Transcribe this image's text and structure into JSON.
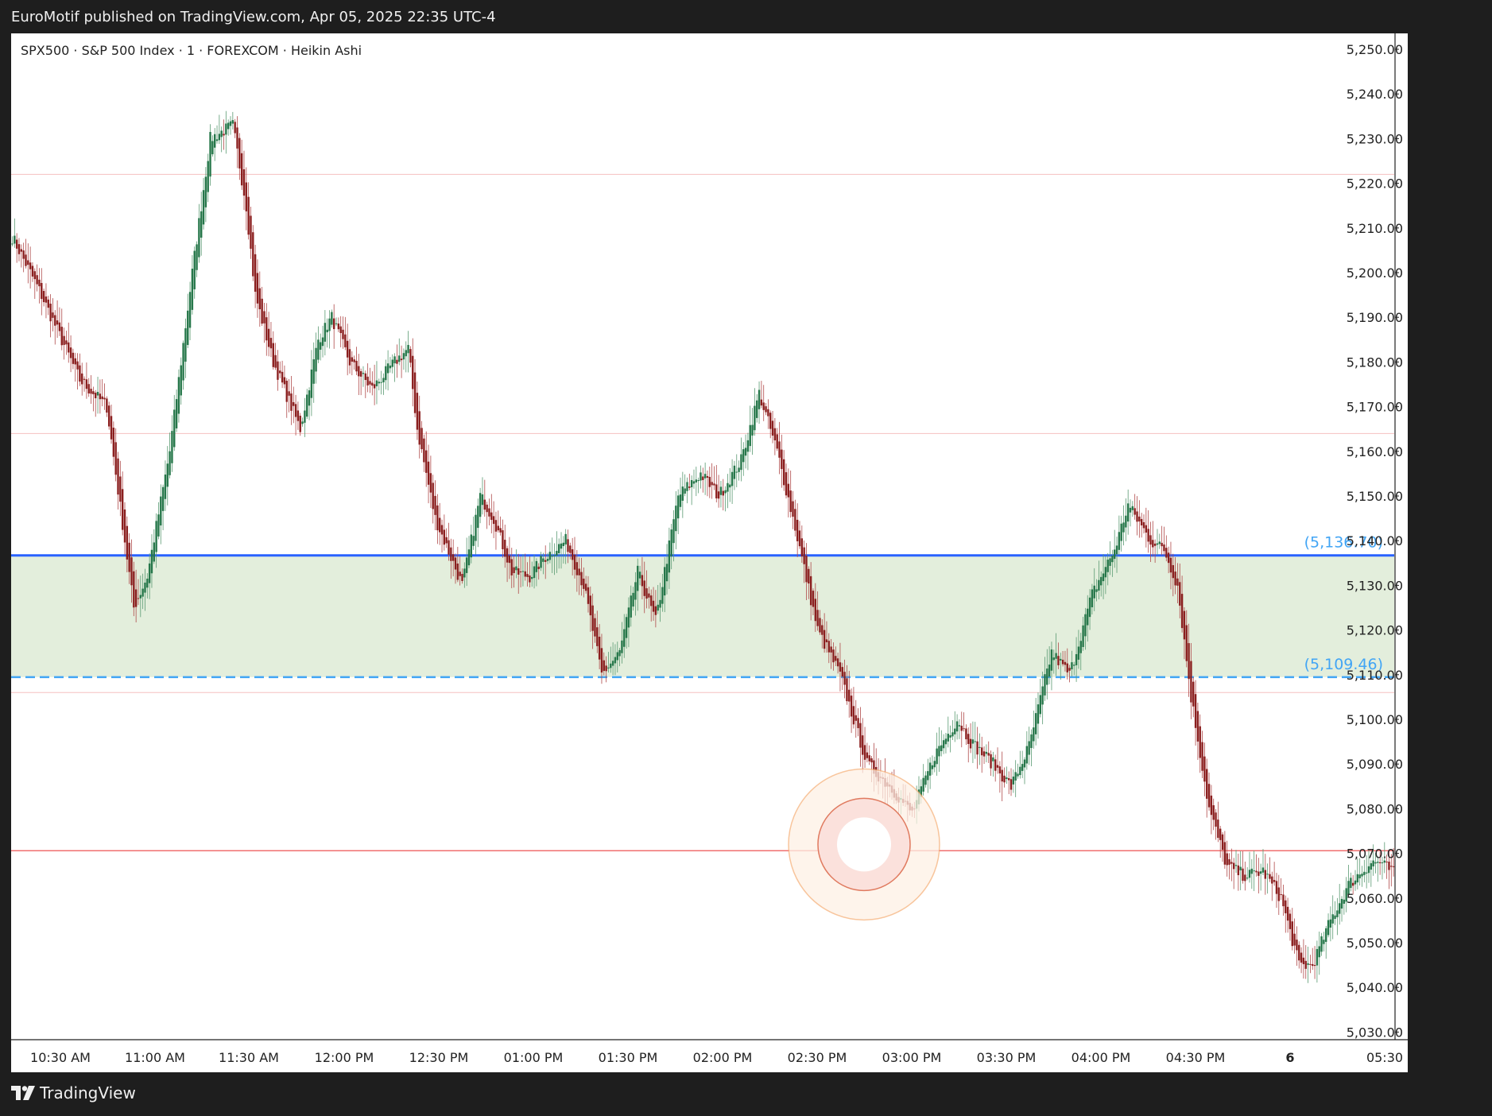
{
  "header": {
    "published": "EuroMotif published on TradingView.com, Apr 05, 2025 22:35 UTC-4"
  },
  "footer": {
    "brand": "TradingView"
  },
  "colors": {
    "up": "#26774a",
    "down": "#8b1f1f",
    "wick_up": "#5a9a72",
    "wick_down": "#b04a4a",
    "zone_fill": "#e3eedc",
    "level_blue": "#2962ff",
    "level_label": "#42a5f5",
    "red_line": "#f06f6f",
    "faint_red_line": "#f5c0c0",
    "target_ring": "#f4a261"
  },
  "chart_data": {
    "type": "candlestick",
    "title": "SPX500 · S&P 500 Index · 1 · FOREXCOM · Heikin Ashi",
    "ylim": [
      5027,
      5256
    ],
    "y_ticks": [
      "5,250.00",
      "5,240.00",
      "5,230.00",
      "5,220.00",
      "5,210.00",
      "5,200.00",
      "5,190.00",
      "5,180.00",
      "5,170.00",
      "5,160.00",
      "5,150.00",
      "5,140.00",
      "5,130.00",
      "5,120.00",
      "5,110.00",
      "5,100.00",
      "5,090.00",
      "5,080.00",
      "5,070.00",
      "5,060.00",
      "5,050.00",
      "5,040.00",
      "5,030.00"
    ],
    "x_ticks": [
      "10:30 AM",
      "11:00 AM",
      "11:30 AM",
      "12:00 PM",
      "12:30 PM",
      "01:00 PM",
      "01:30 PM",
      "02:00 PM",
      "02:30 PM",
      "03:00 PM",
      "03:30 PM",
      "04:00 PM",
      "04:30 PM",
      "6",
      "05:30"
    ],
    "x_ticks_bold": [
      "6"
    ],
    "zone": {
      "top": 5136.7,
      "bottom": 5109.46
    },
    "level_labels": [
      {
        "value": 5136.7,
        "text": "(5,136.70)",
        "style": "solid"
      },
      {
        "value": 5109.46,
        "text": "(5,109.46)",
        "style": "dashed"
      }
    ],
    "horizontal_lines": [
      {
        "value": 5222.0,
        "style": "faint"
      },
      {
        "value": 5164.0,
        "style": "faint"
      },
      {
        "value": 5106.0,
        "style": "faint"
      },
      {
        "value": 5070.6,
        "style": "solid"
      }
    ],
    "target_marker": {
      "time": "02:45 PM",
      "price": 5072.0
    },
    "path_keypoints": [
      [
        0,
        5208
      ],
      [
        12,
        5196
      ],
      [
        30,
        5176
      ],
      [
        42,
        5170
      ],
      [
        54,
        5125
      ],
      [
        60,
        5132
      ],
      [
        70,
        5160
      ],
      [
        80,
        5200
      ],
      [
        88,
        5230
      ],
      [
        98,
        5233
      ],
      [
        104,
        5215
      ],
      [
        108,
        5195
      ],
      [
        116,
        5180
      ],
      [
        128,
        5165
      ],
      [
        136,
        5185
      ],
      [
        142,
        5190
      ],
      [
        150,
        5180
      ],
      [
        160,
        5174
      ],
      [
        170,
        5180
      ],
      [
        176,
        5183
      ],
      [
        180,
        5165
      ],
      [
        188,
        5145
      ],
      [
        200,
        5130
      ],
      [
        208,
        5150
      ],
      [
        214,
        5145
      ],
      [
        222,
        5133
      ],
      [
        230,
        5132
      ],
      [
        236,
        5136
      ],
      [
        246,
        5140
      ],
      [
        254,
        5130
      ],
      [
        262,
        5110
      ],
      [
        270,
        5115
      ],
      [
        278,
        5133
      ],
      [
        286,
        5122
      ],
      [
        296,
        5150
      ],
      [
        306,
        5155
      ],
      [
        314,
        5150
      ],
      [
        324,
        5158
      ],
      [
        332,
        5173
      ],
      [
        340,
        5160
      ],
      [
        348,
        5143
      ],
      [
        358,
        5120
      ],
      [
        368,
        5110
      ],
      [
        380,
        5090
      ],
      [
        390,
        5085
      ],
      [
        400,
        5079
      ],
      [
        410,
        5092
      ],
      [
        420,
        5100
      ],
      [
        426,
        5095
      ],
      [
        436,
        5090
      ],
      [
        444,
        5085
      ],
      [
        452,
        5094
      ],
      [
        462,
        5115
      ],
      [
        470,
        5110
      ],
      [
        480,
        5128
      ],
      [
        490,
        5138
      ],
      [
        496,
        5148
      ],
      [
        506,
        5140
      ],
      [
        512,
        5138
      ],
      [
        518,
        5130
      ],
      [
        524,
        5105
      ],
      [
        532,
        5080
      ],
      [
        540,
        5067
      ],
      [
        548,
        5065
      ],
      [
        556,
        5066
      ],
      [
        564,
        5060
      ],
      [
        572,
        5045
      ],
      [
        578,
        5045
      ],
      [
        586,
        5055
      ],
      [
        594,
        5063
      ],
      [
        604,
        5068
      ],
      [
        608,
        5068
      ],
      [
        618,
        5064
      ]
    ]
  }
}
